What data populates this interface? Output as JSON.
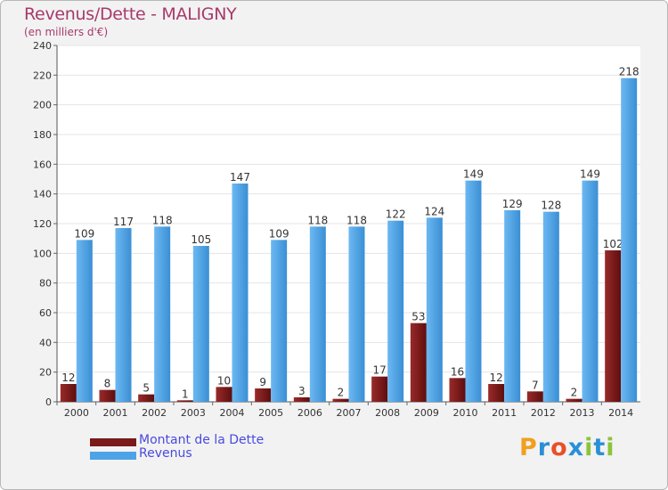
{
  "title": "Revenus/Dette - MALIGNY",
  "subtitle": "(en milliers d'€)",
  "colors": {
    "dette": "#7a1a1a",
    "revenus": "#4da3e6",
    "title": "#a8396a",
    "legend_text": "#4a4adf"
  },
  "chart_data": {
    "type": "bar",
    "title": "Revenus/Dette - MALIGNY",
    "ylabel": "(en milliers d'€)",
    "xlabel": "",
    "ylim": [
      0,
      240
    ],
    "yticks": [
      0,
      20,
      40,
      60,
      80,
      100,
      120,
      140,
      160,
      180,
      200,
      220,
      240
    ],
    "grid": true,
    "legend_position": "bottom-left",
    "categories": [
      "2000",
      "2001",
      "2002",
      "2003",
      "2004",
      "2005",
      "2006",
      "2007",
      "2008",
      "2009",
      "2010",
      "2011",
      "2012",
      "2013",
      "2014"
    ],
    "series": [
      {
        "name": "Montant de la Dette",
        "values": [
          12,
          8,
          5,
          1,
          10,
          9,
          3,
          2,
          17,
          53,
          16,
          12,
          7,
          2,
          102
        ]
      },
      {
        "name": "Revenus",
        "values": [
          109,
          117,
          118,
          105,
          147,
          109,
          118,
          118,
          122,
          124,
          149,
          129,
          128,
          149,
          218
        ]
      }
    ]
  },
  "legend": [
    {
      "label": "Montant de la Dette"
    },
    {
      "label": "Revenus"
    }
  ],
  "logo": {
    "letters": [
      "P",
      "r",
      "o",
      "x",
      "i",
      "t",
      "i"
    ]
  }
}
